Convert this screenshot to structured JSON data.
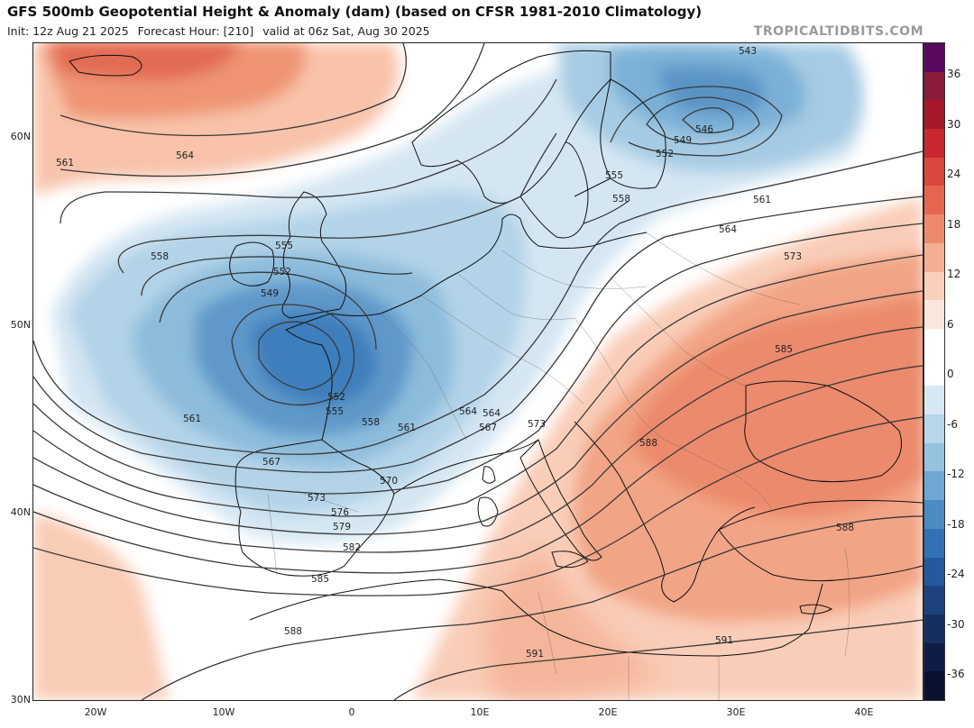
{
  "header": {
    "title": "GFS 500mb Geopotential Height & Anomaly (dam) (based on CFSR 1981-2010 Climatology)",
    "init": "Init: 12z Aug 21 2025",
    "forecast_hour": "Forecast Hour: [210]",
    "valid": "valid at 06z Sat, Aug 30 2025",
    "watermark": "TROPICALTIDBITS.COM"
  },
  "axes": {
    "latitudes": [
      "60N",
      "50N",
      "40N",
      "30N"
    ],
    "longitudes": [
      "20W",
      "10W",
      "0",
      "10E",
      "20E",
      "30E",
      "40E"
    ]
  },
  "colorbar": {
    "labels": [
      "36",
      "30",
      "24",
      "18",
      "12",
      "6",
      "0",
      "-6",
      "-12",
      "-18",
      "-24",
      "-30",
      "-36"
    ],
    "colors": [
      "#5a0a5e",
      "#8a1d3a",
      "#a8172a",
      "#c8282e",
      "#d9473d",
      "#e5654f",
      "#ee8a6c",
      "#f5ae91",
      "#fad0bb",
      "#fbe6db",
      "#ffffff",
      "#ffffff",
      "#d6e8f3",
      "#b7d6ea",
      "#94c2df",
      "#6ea7d2",
      "#4b8cc4",
      "#3272b4",
      "#25599d",
      "#1d437f",
      "#162f61",
      "#0f1d46",
      "#0a1030"
    ]
  },
  "contour_labels": [
    "564",
    "561",
    "558",
    "555",
    "552",
    "549",
    "561",
    "555",
    "552",
    "558",
    "561",
    "564",
    "567",
    "570",
    "573",
    "576",
    "579",
    "582",
    "585",
    "588",
    "591",
    "543",
    "546",
    "549",
    "552",
    "555",
    "558",
    "561",
    "564",
    "573",
    "585",
    "588",
    "564",
    "567",
    "573",
    "591",
    "588"
  ]
}
